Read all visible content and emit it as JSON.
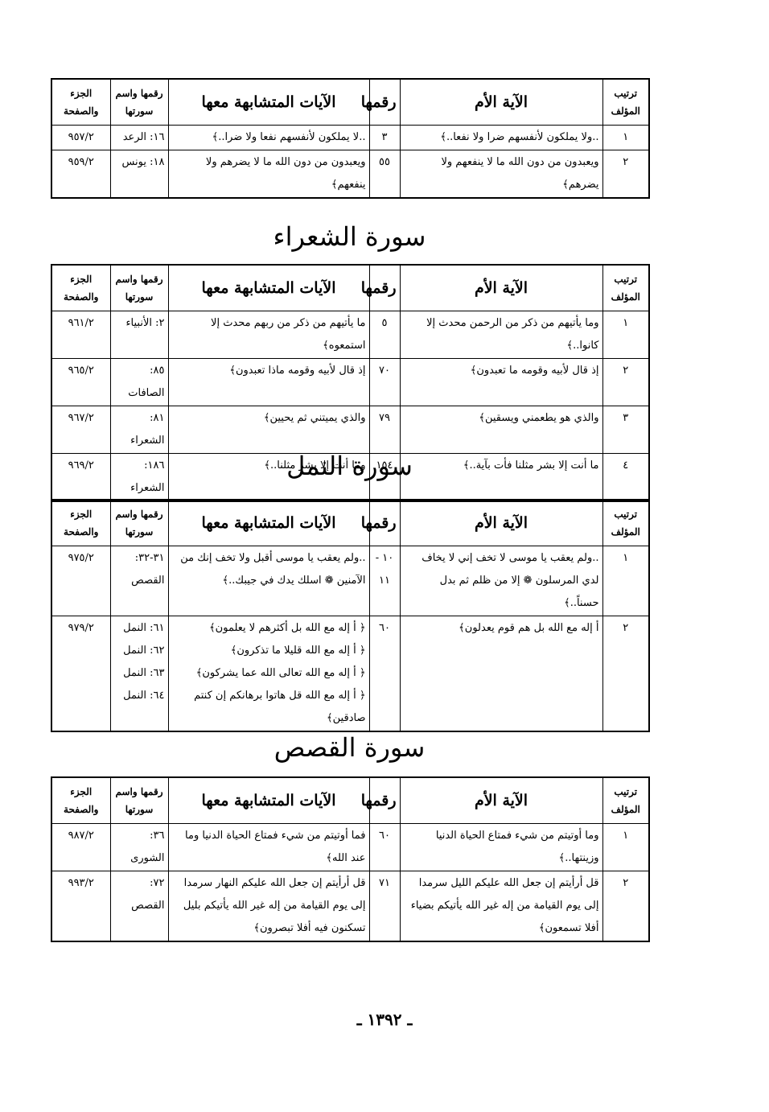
{
  "sections": [
    {
      "table": {
        "headers": [
          "ترتيب المؤلف",
          "الآية الأم",
          "رقمها",
          "الآيات المتشابهة معها",
          "رقمها واسم سورتها",
          "الجزء والصفحة"
        ],
        "rows": [
          [
            "١",
            "..ولا يملكون لأنفسهم ضرا ولا نفعا..﴾",
            "٣",
            "..لا يملكون لأنفسهم نفعا ولا ضرا..﴾",
            "١٦: الرعد",
            "٩٥٧/٢"
          ],
          [
            "٢",
            "ويعبدون من دون الله ما لا ينفعهم ولا يضرهم﴾",
            "٥٥",
            "ويعبدون من دون الله ما لا يضرهم ولا ينفعهم﴾",
            "١٨: يونس",
            "٩٥٩/٢"
          ]
        ]
      }
    },
    {
      "title": "سورة الشعراء",
      "table": {
        "headers": [
          "ترتيب المؤلف",
          "الآية الأم",
          "رقمها",
          "الآيات المتشابهة معها",
          "رقمها واسم سورتها",
          "الجزء والصفحة"
        ],
        "rows": [
          [
            "١",
            "وما يأتيهم من ذكر من الرحمن محدث إلا كانوا..﴾",
            "٥",
            "ما يأتيهم من ذكر من ربهم محدث إلا استمعوه﴾",
            "٢: الأنبياء",
            "٩٦١/٢"
          ],
          [
            "٢",
            "إذ قال لأبيه وقومه ما تعبدون﴾",
            "٧٠",
            "إذ قال لأبيه وقومه ماذا تعبدون﴾",
            "٨٥: الصافات",
            "٩٦٥/٢"
          ],
          [
            "٣",
            "والذي هو يطعمني ويسقين﴾",
            "٧٩",
            "والذي يميتني ثم يحيين﴾",
            "٨١: الشعراء",
            "٩٦٧/٢"
          ],
          [
            "٤",
            "ما أنت إلا بشر مثلنا فأت بآية..﴾",
            "١٥٤",
            "وما أنت إلا بشر مثلنا..﴾",
            "١٨٦: الشعراء",
            "٩٦٩/٢"
          ]
        ]
      }
    },
    {
      "title": "سورة النمل",
      "table": {
        "headers": [
          "ترتيب المؤلف",
          "الآية الأم",
          "رقمها",
          "الآيات المتشابهة معها",
          "رقمها واسم سورتها",
          "الجزء والصفحة"
        ],
        "rows": [
          [
            "١",
            "..ولم يعقب يا موسى لا تخف إني لا يخاف لدي المرسلون ❁ إلا من ظلم ثم بدل حسناً..﴾",
            "١٠ - ١١",
            "..ولم يعقب يا موسى أقبل ولا تخف إنك من الآمنين ❁ اسلك يدك في جيبك..﴾",
            "٣١-٣٢: القصص",
            "٩٧٥/٢"
          ],
          [
            "٢",
            "أ إله مع الله بل هم قوم يعدلون﴾",
            "٦٠",
            [
              "﴿ أ إله مع الله بل أكثرهم لا يعلمون﴾",
              "﴿ أ إله مع الله قليلا ما تذكرون﴾",
              "﴿ أ إله مع الله تعالى الله عما يشركون﴾",
              "﴿ أ إله مع الله قل هاتوا برهانكم إن كنتم صادقين﴾"
            ],
            [
              "٦١: النمل",
              "٦٢: النمل",
              "٦٣: النمل",
              "٦٤: النمل"
            ],
            "٩٧٩/٢"
          ]
        ]
      }
    },
    {
      "title": "سورة القصص",
      "table": {
        "headers": [
          "ترتيب المؤلف",
          "الآية الأم",
          "رقمها",
          "الآيات المتشابهة معها",
          "رقمها واسم سورتها",
          "الجزء والصفحة"
        ],
        "rows": [
          [
            "١",
            "وما أوتيتم من شيء فمتاع الحياة الدنيا وزينتها..﴾",
            "٦٠",
            "فما أوتيتم من شيء فمتاع الحياة الدنيا وما عند الله﴾",
            "٣٦: الشورى",
            "٩٨٧/٢"
          ],
          [
            "٢",
            "قل أرأيتم إن جعل الله عليكم الليل سرمدا إلى يوم القيامة من إله غير الله يأتيكم بضياء أفلا تسمعون﴾",
            "٧١",
            "قل أرأيتم إن جعل الله عليكم النهار سرمدا إلى يوم القيامة من إله غير الله يأتيكم بليل تسكنون فيه أفلا تبصرون﴾",
            "٧٢: القصص",
            "٩٩٣/٢"
          ]
        ]
      }
    }
  ],
  "footer": {
    "page_number": "ـ ١٣٩٢ ـ"
  }
}
